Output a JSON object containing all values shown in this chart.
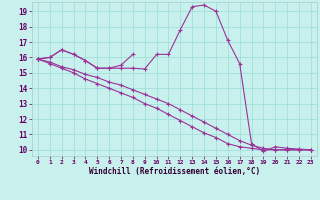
{
  "title": "",
  "xlabel": "Windchill (Refroidissement éolien,°C)",
  "background_color": "#c8f0ec",
  "grid_color": "#99ddda",
  "line_color": "#993399",
  "x_values": [
    0,
    1,
    2,
    3,
    4,
    5,
    6,
    7,
    8,
    9,
    10,
    11,
    12,
    13,
    14,
    15,
    16,
    17,
    18,
    19,
    20,
    21,
    22,
    23
  ],
  "series1": [
    15.9,
    16.0,
    16.5,
    16.2,
    15.8,
    15.3,
    15.3,
    15.3,
    15.3,
    15.25,
    16.2,
    16.2,
    17.8,
    19.3,
    19.4,
    19.0,
    17.1,
    15.6,
    10.4,
    9.9,
    10.2,
    10.1,
    10.05,
    10.0
  ],
  "series2": [
    15.9,
    16.0,
    16.5,
    16.2,
    15.8,
    15.3,
    15.3,
    15.5,
    16.2,
    null,
    null,
    null,
    null,
    null,
    null,
    null,
    null,
    null,
    null,
    null,
    null,
    null,
    null,
    null
  ],
  "series3": [
    15.9,
    15.7,
    15.4,
    15.2,
    14.9,
    14.7,
    14.4,
    14.2,
    13.9,
    13.6,
    13.3,
    13.0,
    12.6,
    12.2,
    11.8,
    11.4,
    11.0,
    10.6,
    10.3,
    10.1,
    10.0,
    10.0,
    10.0,
    10.0
  ],
  "series4": [
    15.9,
    15.6,
    15.3,
    15.0,
    14.6,
    14.3,
    14.0,
    13.7,
    13.4,
    13.0,
    12.7,
    12.3,
    11.9,
    11.5,
    11.1,
    10.8,
    10.4,
    10.2,
    10.1,
    10.0,
    10.0,
    10.0,
    10.0,
    10.0
  ],
  "ylim": [
    9.6,
    19.6
  ],
  "xlim": [
    -0.5,
    23.5
  ],
  "yticks": [
    10,
    11,
    12,
    13,
    14,
    15,
    16,
    17,
    18,
    19
  ],
  "xticks": [
    0,
    1,
    2,
    3,
    4,
    5,
    6,
    7,
    8,
    9,
    10,
    11,
    12,
    13,
    14,
    15,
    16,
    17,
    18,
    19,
    20,
    21,
    22,
    23
  ]
}
